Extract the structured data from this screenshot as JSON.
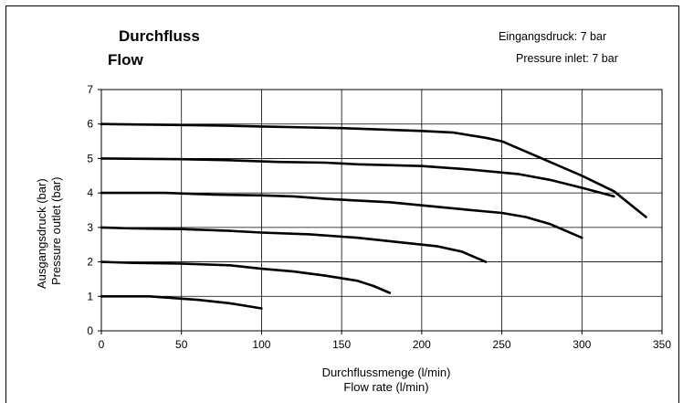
{
  "chart_data": {
    "type": "line",
    "title": "Durchfluss",
    "subtitle": "Flow",
    "annotations": [
      "Eingangsdruck: 7 bar",
      "Pressure inlet: 7 bar"
    ],
    "xlabel": "Durchflussmenge (l/min)",
    "xlabel_en": "Flow rate (l/min)",
    "ylabel": "Ausgangsdruck (bar)",
    "ylabel_en": "Pressure outlet (bar)",
    "xlim": [
      0,
      350
    ],
    "ylim": [
      0,
      7
    ],
    "x_ticks": [
      "0",
      "50",
      "100",
      "150",
      "200",
      "250",
      "300",
      "350"
    ],
    "y_ticks": [
      "0",
      "1",
      "2",
      "3",
      "4",
      "5",
      "6",
      "7"
    ],
    "grid": true,
    "line_color": "#000000",
    "series": [
      {
        "x": [
          0,
          30,
          60,
          80,
          100
        ],
        "y": [
          1.0,
          1.0,
          0.9,
          0.8,
          0.65
        ]
      },
      {
        "x": [
          0,
          20,
          50,
          80,
          100,
          120,
          140,
          160,
          170,
          180
        ],
        "y": [
          2.0,
          1.97,
          1.95,
          1.9,
          1.8,
          1.72,
          1.6,
          1.45,
          1.3,
          1.1
        ]
      },
      {
        "x": [
          0,
          20,
          50,
          80,
          100,
          130,
          160,
          190,
          210,
          225,
          240
        ],
        "y": [
          3.0,
          2.97,
          2.95,
          2.9,
          2.85,
          2.8,
          2.7,
          2.55,
          2.45,
          2.3,
          2.0
        ]
      },
      {
        "x": [
          0,
          40,
          70,
          100,
          120,
          140,
          180,
          220,
          250,
          265,
          280,
          300
        ],
        "y": [
          4.0,
          4.0,
          3.95,
          3.93,
          3.9,
          3.83,
          3.73,
          3.55,
          3.42,
          3.3,
          3.1,
          2.7
        ]
      },
      {
        "x": [
          0,
          50,
          80,
          110,
          140,
          160,
          200,
          230,
          260,
          280,
          300,
          320
        ],
        "y": [
          5.0,
          4.98,
          4.95,
          4.9,
          4.88,
          4.83,
          4.78,
          4.68,
          4.55,
          4.38,
          4.15,
          3.9
        ]
      },
      {
        "x": [
          0,
          50,
          80,
          100,
          130,
          150,
          170,
          200,
          220,
          240,
          250,
          260,
          280,
          300,
          320,
          340
        ],
        "y": [
          6.0,
          5.97,
          5.95,
          5.93,
          5.9,
          5.88,
          5.85,
          5.8,
          5.75,
          5.6,
          5.5,
          5.3,
          4.9,
          4.5,
          4.05,
          3.3
        ]
      }
    ]
  }
}
